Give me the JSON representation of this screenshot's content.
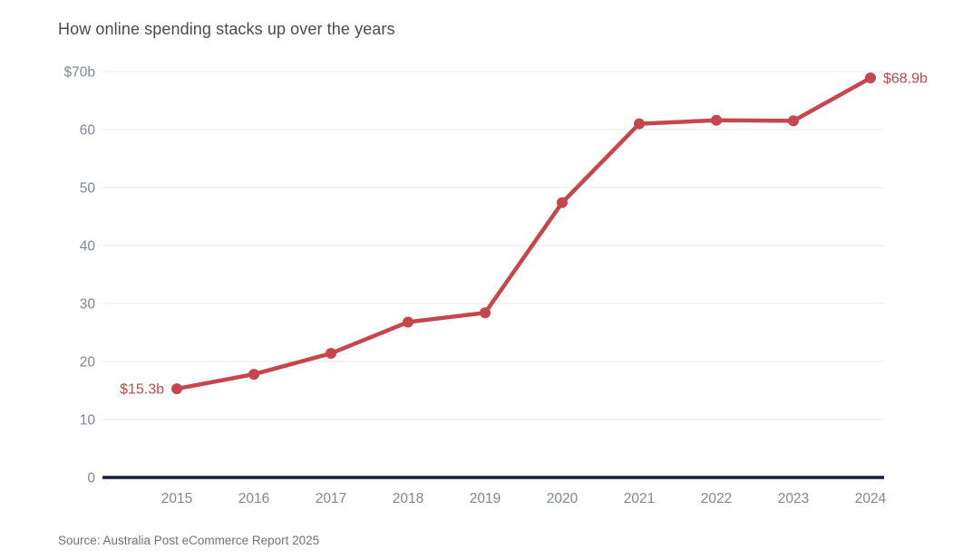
{
  "title": "How online spending stacks up over the years",
  "source": "Source: Australia Post eCommerce Report 2025",
  "colors": {
    "line": "#c7464e",
    "point": "#c7464e",
    "annotation": "#c7464e",
    "axis": "#151d3a",
    "gridline": "#e8e8e8",
    "tick_label": "#7e8794",
    "title": "#4b4b4e",
    "source": "#6c737e",
    "background": "#ffffff"
  },
  "chart_data": {
    "type": "line",
    "title": "How online spending stacks up over the years",
    "xlabel": "",
    "ylabel": "",
    "categories": [
      "2015",
      "2016",
      "2017",
      "2018",
      "2019",
      "2020",
      "2021",
      "2022",
      "2023",
      "2024"
    ],
    "values": [
      15.3,
      17.8,
      21.4,
      26.8,
      28.4,
      47.4,
      61.0,
      61.6,
      61.5,
      68.9
    ],
    "value_prefix": "$",
    "value_suffix": "b",
    "ylim": [
      0,
      70
    ],
    "yticks": [
      0,
      10,
      20,
      30,
      40,
      50,
      60,
      70
    ],
    "ytick_labels": [
      "0",
      "10",
      "20",
      "30",
      "40",
      "50",
      "60",
      "$70b"
    ],
    "grid": true,
    "legend": false,
    "annotations": [
      {
        "year": "2015",
        "text": "$15.3b",
        "side": "left"
      },
      {
        "year": "2024",
        "text": "$68.9b",
        "side": "right"
      }
    ]
  }
}
